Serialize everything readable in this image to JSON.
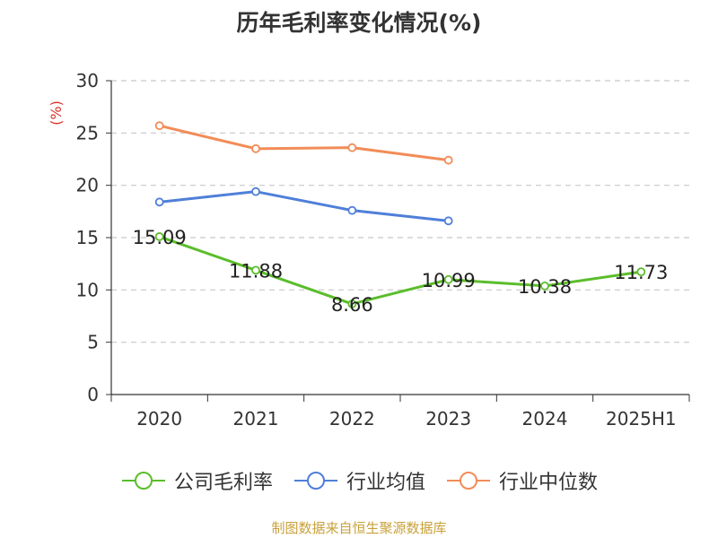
{
  "title": "历年毛利率变化情况(%)",
  "source": "制图数据来自恒生聚源数据库",
  "chart_data": {
    "type": "line",
    "title": "历年毛利率变化情况(%)",
    "ylabel": "(%)",
    "xlabel": "",
    "categories": [
      "2020",
      "2021",
      "2022",
      "2023",
      "2024",
      "2025H1"
    ],
    "ylim": [
      0,
      30
    ],
    "yticks": [
      0,
      5,
      10,
      15,
      20,
      25,
      30
    ],
    "grid": true,
    "legend_position": "bottom",
    "series": [
      {
        "name": "公司毛利率",
        "color": "#5bbd2b",
        "values": [
          15.09,
          11.88,
          8.66,
          10.99,
          10.38,
          11.73
        ],
        "labels": [
          "15.09",
          "11.88",
          "8.66",
          "10.99",
          "10.38",
          "11.73"
        ]
      },
      {
        "name": "行业均值",
        "color": "#4f7fd9",
        "values": [
          18.4,
          19.4,
          17.6,
          16.6,
          null,
          null
        ]
      },
      {
        "name": "行业中位数",
        "color": "#f28c57",
        "values": [
          25.7,
          23.5,
          23.6,
          22.4,
          null,
          null
        ]
      }
    ]
  }
}
